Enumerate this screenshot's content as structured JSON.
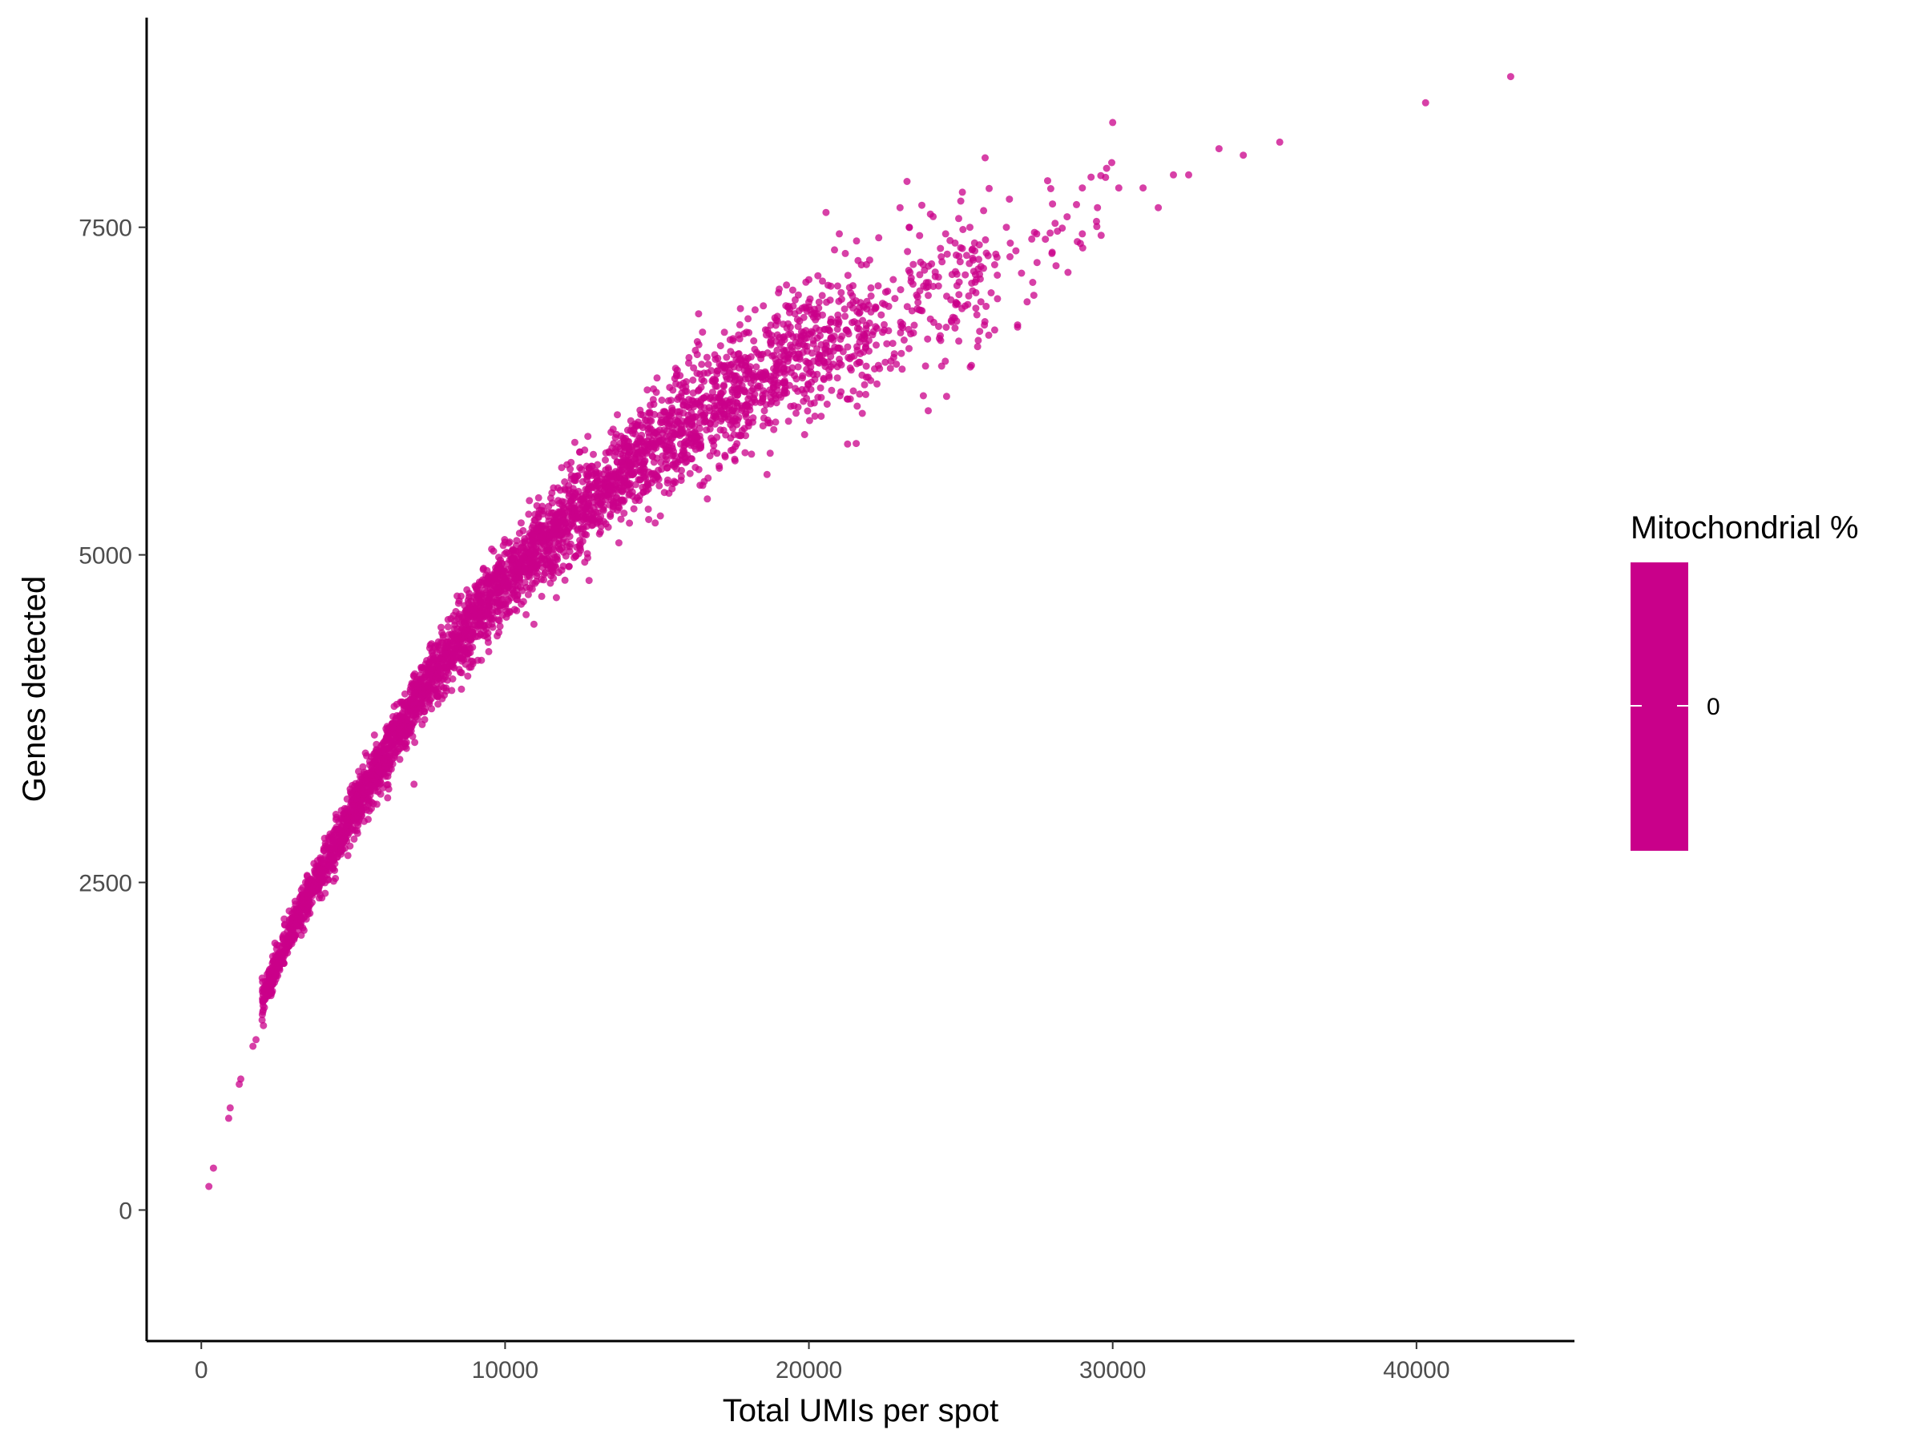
{
  "chart_data": {
    "type": "scatter",
    "title": "",
    "xlabel": "Total UMIs per spot",
    "ylabel": "Genes detected",
    "xlim": [
      -1800,
      45200
    ],
    "ylim": [
      -1000,
      9100
    ],
    "x_ticks": [
      0,
      10000,
      20000,
      30000,
      40000
    ],
    "y_ticks": [
      0,
      2500,
      5000,
      7500
    ],
    "grid": false,
    "point_color": "#C9008A",
    "point_opacity": 0.75,
    "legend": {
      "position": "right",
      "title": "Mitochondrial %",
      "labels": [
        "0"
      ],
      "color": "#C9008A"
    },
    "trend": {
      "description": "genes detected rise steeply then saturate with total UMIs",
      "approx_points": [
        [
          250,
          200
        ],
        [
          1000,
          900
        ],
        [
          2000,
          1600
        ],
        [
          3000,
          2150
        ],
        [
          4000,
          2600
        ],
        [
          5000,
          3050
        ],
        [
          6000,
          3450
        ],
        [
          7000,
          3850
        ],
        [
          8000,
          4200
        ],
        [
          9000,
          4500
        ],
        [
          10000,
          4800
        ],
        [
          12000,
          5250
        ],
        [
          14000,
          5650
        ],
        [
          16000,
          6000
        ],
        [
          18000,
          6300
        ],
        [
          20000,
          6550
        ],
        [
          22000,
          6750
        ],
        [
          24000,
          6950
        ],
        [
          26000,
          7150
        ],
        [
          28000,
          7350
        ],
        [
          30000,
          7550
        ],
        [
          33000,
          7800
        ],
        [
          36000,
          8050
        ],
        [
          40300,
          8450
        ],
        [
          43000,
          8650
        ]
      ]
    },
    "points": [
      [
        250,
        180
      ],
      [
        400,
        320
      ],
      [
        900,
        700
      ],
      [
        950,
        780
      ],
      [
        1250,
        960
      ],
      [
        1300,
        1000
      ],
      [
        1700,
        1250
      ],
      [
        1800,
        1300
      ],
      [
        2000,
        1450
      ],
      [
        7000,
        3250
      ],
      [
        20600,
        6150
      ],
      [
        21000,
        7450
      ],
      [
        21200,
        7300
      ],
      [
        22000,
        7250
      ],
      [
        22300,
        7420
      ],
      [
        23000,
        7650
      ],
      [
        23300,
        7500
      ],
      [
        24000,
        7600
      ],
      [
        24500,
        7450
      ],
      [
        25000,
        7700
      ],
      [
        25300,
        7500
      ],
      [
        25800,
        8030
      ],
      [
        26500,
        7500
      ],
      [
        27500,
        7450
      ],
      [
        28500,
        7580
      ],
      [
        29000,
        7800
      ],
      [
        29500,
        7650
      ],
      [
        29800,
        7950
      ],
      [
        30000,
        8300
      ],
      [
        30200,
        7800
      ],
      [
        31000,
        7800
      ],
      [
        31500,
        7650
      ],
      [
        32000,
        7900
      ],
      [
        32500,
        7900
      ],
      [
        33500,
        8100
      ],
      [
        34300,
        8050
      ],
      [
        35500,
        8150
      ],
      [
        40300,
        8450
      ],
      [
        43100,
        8650
      ],
      [
        17000,
        6500
      ],
      [
        17500,
        6650
      ],
      [
        19000,
        7000
      ],
      [
        20000,
        7100
      ],
      [
        16500,
        6700
      ],
      [
        18500,
        6900
      ],
      [
        15000,
        6350
      ],
      [
        24000,
        6800
      ],
      [
        26000,
        7000
      ],
      [
        27000,
        7150
      ],
      [
        28000,
        7300
      ],
      [
        29000,
        7450
      ]
    ]
  }
}
